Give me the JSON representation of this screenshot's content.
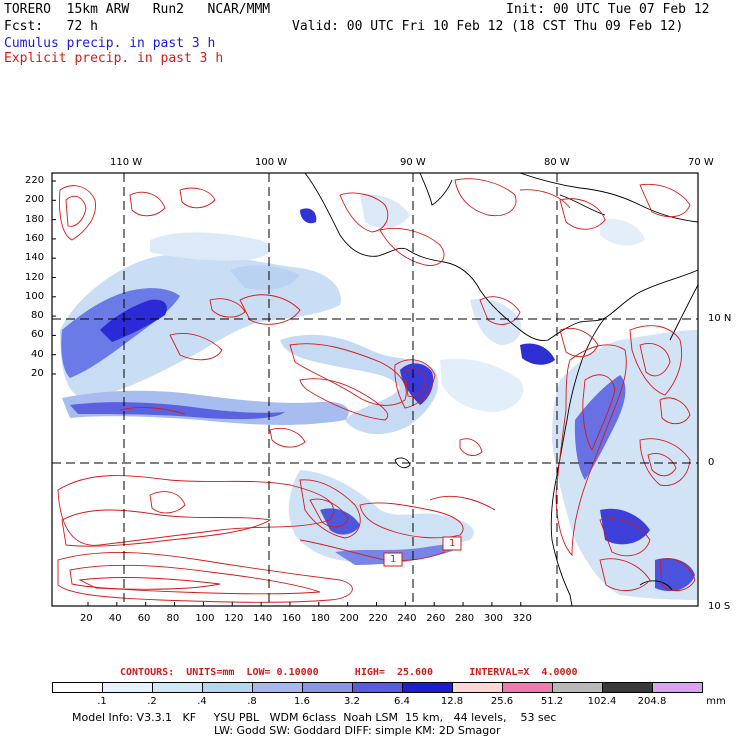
{
  "header": {
    "model": "TORERO  15km ARW   Run2   NCAR/MMM",
    "init": "Init: 00 UTC Tue 07 Feb 12",
    "fcst": "Fcst:   72 h",
    "valid": "Valid: 00 UTC Fri 10 Feb 12 (18 CST Thu 09 Feb 12)",
    "field1": "Cumulus precip. in past 3 h",
    "field2": "Explicit precip. in past 3 h"
  },
  "map": {
    "lon_labels": [
      "110 W",
      "100 W",
      "90 W",
      "80 W",
      "70 W"
    ],
    "lat_labels": [
      "10 N",
      "0",
      "10 S"
    ],
    "x_ticks": [
      "20",
      "40",
      "60",
      "80",
      "100",
      "120",
      "140",
      "160",
      "180",
      "200",
      "220",
      "240",
      "260",
      "280",
      "300",
      "320"
    ],
    "y_ticks": [
      "220",
      "200",
      "180",
      "160",
      "140",
      "120",
      "100",
      "80",
      "60",
      "40",
      "20"
    ],
    "contour_box_labels": [
      "1",
      "1"
    ],
    "colors": {
      "contour": "#d41a1a",
      "grid": "#000000"
    }
  },
  "contours_line": "CONTOURS:  UNITS=mm  LOW= 0.10000      HIGH=  25.600      INTERVAL=X  4.0000",
  "legend": {
    "levels": [
      ".1",
      ".2",
      ".4",
      ".8",
      "1.6",
      "3.2",
      "6.4",
      "12.8",
      "25.6",
      "51.2",
      "102.4",
      "204.8"
    ],
    "unit": "mm",
    "colors": [
      "#ffffff",
      "#e6f2fb",
      "#d1e8f7",
      "#b6d5ef",
      "#a8b8ef",
      "#8a94e4",
      "#5a5ce0",
      "#1e1ed0",
      "#fcd7d7",
      "#f07ab0",
      "#b9b9b9",
      "#3a3a3a",
      "#d9a3f2"
    ]
  },
  "footer": {
    "line1": "Model Info: V3.3.1   KF     YSU PBL   WDM 6class  Noah LSM  15 km,   44 levels,    53 sec",
    "line2": "LW: Godd SW: Goddard DIFF: simple KM: 2D Smagor"
  }
}
